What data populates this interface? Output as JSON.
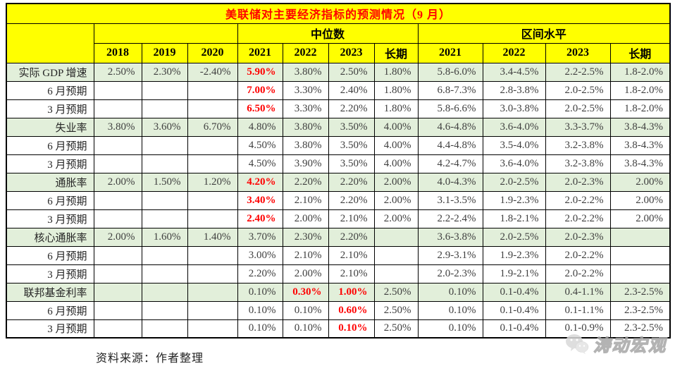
{
  "chart_data": {
    "type": "table",
    "title": "美联储对主要经济指标的预测情况（9 月）",
    "column_groups": {
      "median": "中位数",
      "range": "区间水平"
    },
    "columns": [
      "2018",
      "2019",
      "2020",
      "2021",
      "2022",
      "2023",
      "长期",
      "2021",
      "2022",
      "2023",
      "长期"
    ],
    "rows": [
      {
        "label": "实际 GDP 增速",
        "type": "category",
        "cells": [
          "2.50%",
          "2.30%",
          "-2.40%",
          "5.90%",
          "3.80%",
          "2.50%",
          "1.80%",
          "5.8-6.0%",
          "3.4-4.5%",
          "2.2-2.5%",
          "1.8-2.0%"
        ],
        "red": [
          3
        ]
      },
      {
        "label": "6 月预期",
        "type": "sub",
        "cells": [
          "",
          "",
          "",
          "7.00%",
          "3.30%",
          "2.40%",
          "1.80%",
          "6.8-7.3%",
          "2.8-3.8%",
          "2.0-2.5%",
          "1.8-2.0%"
        ],
        "red": [
          3
        ]
      },
      {
        "label": "3 月预期",
        "type": "sub",
        "cells": [
          "",
          "",
          "",
          "6.50%",
          "3.30%",
          "2.20%",
          "1.80%",
          "5.8-6.6%",
          "3.0-3.8%",
          "2.0-2.5%",
          "1.8-2.0%"
        ],
        "red": [
          3
        ]
      },
      {
        "label": "失业率",
        "type": "category",
        "cells": [
          "3.80%",
          "3.60%",
          "6.70%",
          "4.80%",
          "3.80%",
          "3.50%",
          "4.00%",
          "4.6-4.8%",
          "3.6-4.0%",
          "3.3-3.7%",
          "3.8-4.3%"
        ],
        "red": []
      },
      {
        "label": "6 月预期",
        "type": "sub",
        "cells": [
          "",
          "",
          "",
          "4.50%",
          "3.80%",
          "3.50%",
          "4.00%",
          "4.4-4.8%",
          "3.5-4.0%",
          "3.2-3.8%",
          "3.8-4.3%"
        ],
        "red": []
      },
      {
        "label": "3 月预期",
        "type": "sub",
        "cells": [
          "",
          "",
          "",
          "4.50%",
          "3.90%",
          "3.50%",
          "4.00%",
          "4.2-4.7%",
          "3.6-4.0%",
          "3.2-3.8%",
          "3.8-4.3%"
        ],
        "red": []
      },
      {
        "label": "通胀率",
        "type": "category",
        "cells": [
          "2.00%",
          "1.50%",
          "1.20%",
          "4.20%",
          "2.20%",
          "2.20%",
          "2.00%",
          "4.0-4.3%",
          "2.0-2.5%",
          "2.0-2.3%",
          "2.00%"
        ],
        "red": [
          3
        ]
      },
      {
        "label": "6 月预期",
        "type": "sub",
        "cells": [
          "",
          "",
          "",
          "3.40%",
          "2.10%",
          "2.20%",
          "2.00%",
          "3.1-3.5%",
          "1.9-2.3%",
          "2.0-2.2%",
          "2.00%"
        ],
        "red": [
          3
        ]
      },
      {
        "label": "3 月预期",
        "type": "sub",
        "cells": [
          "",
          "",
          "",
          "2.40%",
          "2.00%",
          "2.10%",
          "2.00%",
          "2.2-2.4%",
          "1.8-2.1%",
          "2.0-2.2%",
          "2.00%"
        ],
        "red": [
          3
        ]
      },
      {
        "label": "核心通胀率",
        "type": "category",
        "cells": [
          "2.00%",
          "1.60%",
          "1.40%",
          "3.70%",
          "2.30%",
          "2.20%",
          "",
          "3.6-3.8%",
          "2.0-2.5%",
          "2.0-2.3%",
          ""
        ],
        "red": []
      },
      {
        "label": "6 月预期",
        "type": "sub",
        "cells": [
          "",
          "",
          "",
          "3.00%",
          "2.10%",
          "2.10%",
          "",
          "2.9-3.1%",
          "1.9-2.3%",
          "2.0-2.2%",
          ""
        ],
        "red": []
      },
      {
        "label": "3 月预期",
        "type": "sub",
        "cells": [
          "",
          "",
          "",
          "2.20%",
          "2.00%",
          "2.10%",
          "",
          "2.0-2.3%",
          "1.9-2.1%",
          "2.0-2.2%",
          ""
        ],
        "red": []
      },
      {
        "label": "联邦基金利率",
        "type": "category",
        "cells": [
          "",
          "",
          "",
          "0.10%",
          "0.30%",
          "1.00%",
          "2.50%",
          "0.10%",
          "0.1-0.4%",
          "0.4-1.1%",
          "2.3-2.5%"
        ],
        "red": [
          4,
          5
        ]
      },
      {
        "label": "6 月预期",
        "type": "sub",
        "cells": [
          "",
          "",
          "",
          "0.10%",
          "0.10%",
          "0.60%",
          "2.50%",
          "0.10%",
          "0.1-0.4%",
          "0.1-1.1%",
          "2.3-2.5%"
        ],
        "red": [
          5
        ]
      },
      {
        "label": "3 月预期",
        "type": "sub",
        "cells": [
          "",
          "",
          "",
          "0.10%",
          "0.10%",
          "0.10%",
          "2.50%",
          "0.10%",
          "0.1-0.4%",
          "0.1-0.9%",
          "2.3-2.5%"
        ],
        "red": [
          5
        ]
      }
    ]
  },
  "source_note": "资料来源：作者整理",
  "watermark": {
    "text": "涛动宏观",
    "icon": "wechat-icon"
  },
  "colors": {
    "header_bg": "#FFFF00",
    "category_row_bg": "#E2EFDA",
    "title_text": "#FF0000",
    "highlight_text": "#FF0000",
    "border": "#000000"
  }
}
